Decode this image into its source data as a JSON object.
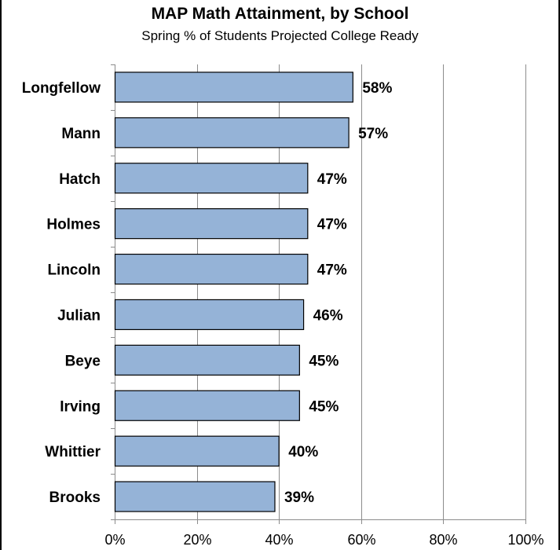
{
  "chart_data": {
    "type": "bar",
    "orientation": "horizontal",
    "title": "MAP Math Attainment, by School",
    "subtitle": "Spring % of Students Projected College Ready",
    "categories": [
      "Longfellow",
      "Mann",
      "Hatch",
      "Holmes",
      "Lincoln",
      "Julian",
      "Beye",
      "Irving",
      "Whittier",
      "Brooks"
    ],
    "values": [
      58,
      57,
      47,
      47,
      47,
      46,
      45,
      45,
      40,
      39
    ],
    "data_labels": [
      "58%",
      "57%",
      "47%",
      "47%",
      "47%",
      "46%",
      "45%",
      "45%",
      "40%",
      "39%"
    ],
    "xlim": [
      0,
      100
    ],
    "xticks": [
      0,
      20,
      40,
      60,
      80,
      100
    ],
    "xtick_labels": [
      "0%",
      "20%",
      "40%",
      "60%",
      "80%",
      "100%"
    ],
    "grid": "vertical",
    "bar_color": "#95B3D7",
    "bar_edge_color": "#000000"
  }
}
